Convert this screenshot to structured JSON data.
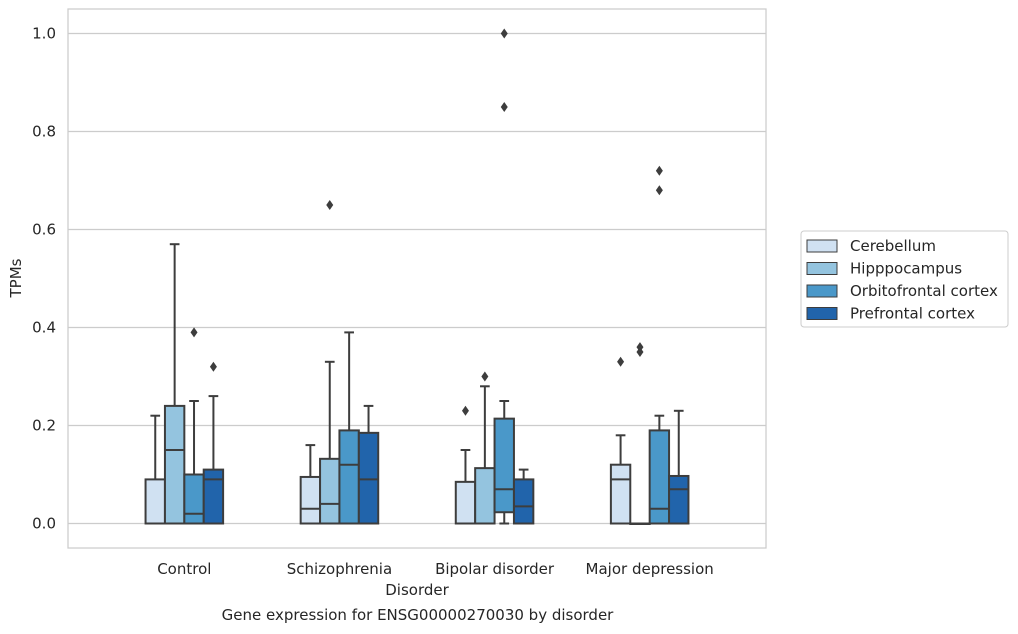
{
  "caption": "Gene expression for ENSG00000270030 by disorder",
  "chart_data": {
    "type": "box",
    "xlabel": "Disorder",
    "ylabel": "TPMs",
    "ylim": [
      -0.05,
      1.05
    ],
    "yticks": [
      "0.0",
      "0.2",
      "0.4",
      "0.6",
      "0.8",
      "1.0"
    ],
    "ytick_values": [
      0.0,
      0.2,
      0.4,
      0.6,
      0.8,
      1.0
    ],
    "grid": "horizontal",
    "legend_position": "center-right",
    "categories": [
      "Control",
      "Schizophrenia",
      "Bipolar disorder",
      "Major depression"
    ],
    "series": [
      {
        "name": "Cerebellum",
        "color": "#d0e1f2",
        "boxes": [
          {
            "whislo": 0.0,
            "q1": 0.0,
            "med": 0.0,
            "q3": 0.09,
            "whishi": 0.22,
            "fliers": []
          },
          {
            "whislo": 0.0,
            "q1": 0.0,
            "med": 0.03,
            "q3": 0.095,
            "whishi": 0.16,
            "fliers": []
          },
          {
            "whislo": 0.0,
            "q1": 0.0,
            "med": 0.0,
            "q3": 0.085,
            "whishi": 0.15,
            "fliers": [
              0.23
            ]
          },
          {
            "whislo": 0.0,
            "q1": 0.0,
            "med": 0.09,
            "q3": 0.12,
            "whishi": 0.18,
            "fliers": [
              0.33
            ]
          }
        ]
      },
      {
        "name": "Hipppocampus",
        "color": "#94c4df",
        "boxes": [
          {
            "whislo": 0.0,
            "q1": 0.0,
            "med": 0.15,
            "q3": 0.24,
            "whishi": 0.57,
            "fliers": []
          },
          {
            "whislo": 0.0,
            "q1": 0.0,
            "med": 0.04,
            "q3": 0.132,
            "whishi": 0.33,
            "fliers": [
              0.65
            ]
          },
          {
            "whislo": 0.0,
            "q1": 0.0,
            "med": 0.0,
            "q3": 0.113,
            "whishi": 0.28,
            "fliers": [
              0.3
            ]
          },
          {
            "whislo": 0.0,
            "q1": 0.0,
            "med": 0.0,
            "q3": 0.0,
            "whishi": 0.0,
            "fliers": [
              0.35,
              0.36
            ]
          }
        ]
      },
      {
        "name": "Orbitofrontal cortex",
        "color": "#4a98c9",
        "boxes": [
          {
            "whislo": 0.0,
            "q1": 0.0,
            "med": 0.02,
            "q3": 0.1,
            "whishi": 0.25,
            "fliers": [
              0.39
            ]
          },
          {
            "whislo": 0.0,
            "q1": 0.0,
            "med": 0.12,
            "q3": 0.19,
            "whishi": 0.39,
            "fliers": []
          },
          {
            "whislo": 0.0,
            "q1": 0.023,
            "med": 0.07,
            "q3": 0.214,
            "whishi": 0.25,
            "fliers": [
              0.85,
              1.0
            ]
          },
          {
            "whislo": 0.0,
            "q1": 0.0,
            "med": 0.03,
            "q3": 0.19,
            "whishi": 0.22,
            "fliers": [
              0.68,
              0.72
            ]
          }
        ]
      },
      {
        "name": "Prefrontal cortex",
        "color": "#2164ab",
        "boxes": [
          {
            "whislo": 0.0,
            "q1": 0.0,
            "med": 0.09,
            "q3": 0.11,
            "whishi": 0.26,
            "fliers": [
              0.32
            ]
          },
          {
            "whislo": 0.0,
            "q1": 0.0,
            "med": 0.09,
            "q3": 0.185,
            "whishi": 0.24,
            "fliers": []
          },
          {
            "whislo": 0.0,
            "q1": 0.0,
            "med": 0.035,
            "q3": 0.09,
            "whishi": 0.11,
            "fliers": []
          },
          {
            "whislo": 0.0,
            "q1": 0.0,
            "med": 0.07,
            "q3": 0.097,
            "whishi": 0.23,
            "fliers": []
          }
        ]
      }
    ]
  }
}
